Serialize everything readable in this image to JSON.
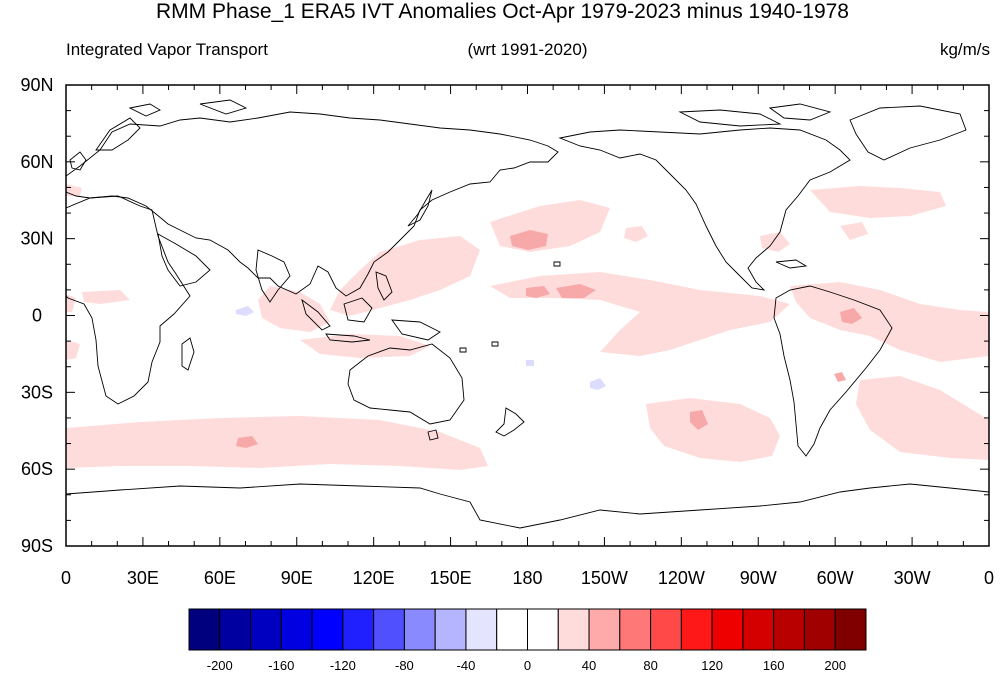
{
  "title": "RMM Phase_1 ERA5 IVT Anomalies Oct-Apr 1979-2023 minus 1940-1978",
  "subtitle_left": "Integrated Vapor Transport",
  "subtitle_center": "(wrt 1991-2020)",
  "subtitle_right": "kg/m/s",
  "map": {
    "projection": "cylindrical-equidistant",
    "center_longitude": 180,
    "lat_range": [
      -90,
      90
    ],
    "lon_range": [
      0,
      360
    ],
    "lat_ticks": [
      "90N",
      "60N",
      "30N",
      "0",
      "30S",
      "60S",
      "90S"
    ],
    "lon_ticks": [
      "0",
      "30E",
      "60E",
      "90E",
      "120E",
      "150E",
      "180",
      "150W",
      "120W",
      "90W",
      "60W",
      "30W",
      "0"
    ]
  },
  "colorbar": {
    "colors": [
      "#00007f",
      "#0000a0",
      "#0000c0",
      "#0000e0",
      "#0000ff",
      "#2020ff",
      "#5050ff",
      "#8a8aff",
      "#b4b4ff",
      "#e4e4ff",
      "#ffffff",
      "#ffffff",
      "#ffdcdc",
      "#ffaaaa",
      "#ff7878",
      "#ff4848",
      "#ff1818",
      "#ee0000",
      "#d40000",
      "#b80000",
      "#a00000",
      "#800000"
    ],
    "labels": [
      "-200",
      "-160",
      "-120",
      "-80",
      "-40",
      "0",
      "40",
      "80",
      "120",
      "160",
      "200"
    ]
  },
  "anomaly_colors": {
    "light_positive": "#ffdcdc",
    "medium_positive": "#f7a8a8",
    "light_negative": "#dcdcff",
    "land_outline": "#000000"
  }
}
